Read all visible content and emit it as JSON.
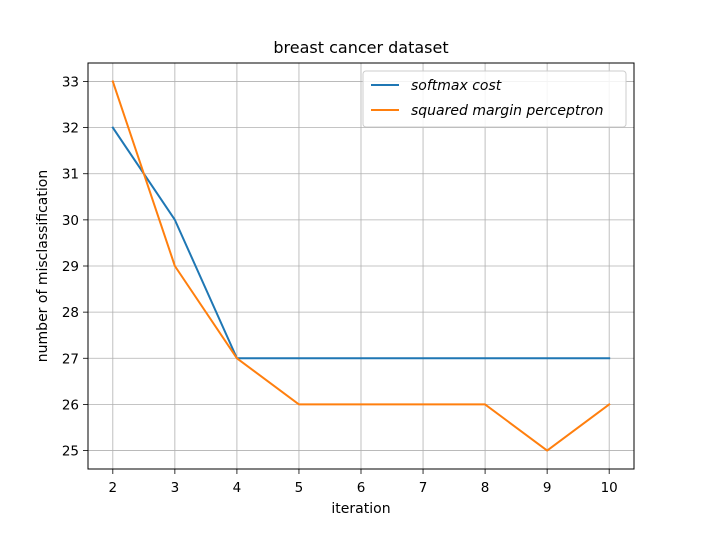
{
  "chart_data": {
    "type": "line",
    "title": "breast cancer dataset",
    "xlabel": "iteration",
    "ylabel": "number of misclassification",
    "x": [
      2,
      3,
      4,
      5,
      6,
      7,
      8,
      9,
      10
    ],
    "series": [
      {
        "name": "softmax cost",
        "color": "#1f77b4",
        "values": [
          32,
          30,
          27,
          27,
          27,
          27,
          27,
          27,
          27
        ]
      },
      {
        "name": "squared margin perceptron",
        "color": "#ff7f0e",
        "values": [
          33,
          29,
          27,
          26,
          26,
          26,
          26,
          25,
          26
        ]
      }
    ],
    "xlim": [
      1.6,
      10.4
    ],
    "ylim": [
      24.6,
      33.4
    ],
    "xticks": [
      2,
      3,
      4,
      5,
      6,
      7,
      8,
      9,
      10
    ],
    "yticks": [
      25,
      26,
      27,
      28,
      29,
      30,
      31,
      32,
      33
    ],
    "grid": true,
    "legend_position": "top-right"
  }
}
